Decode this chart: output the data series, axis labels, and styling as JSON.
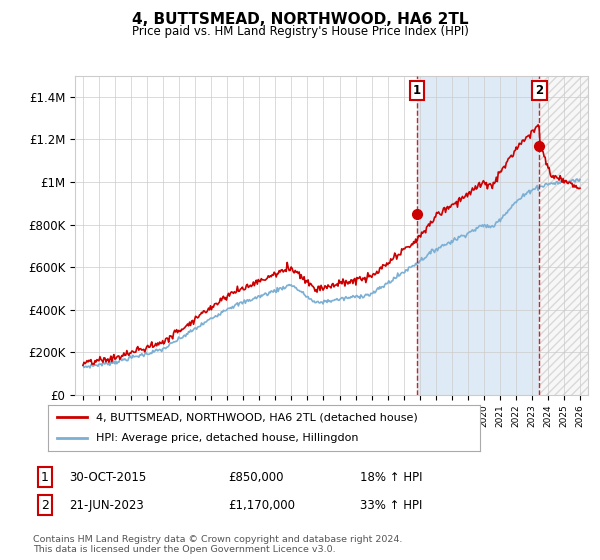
{
  "title": "4, BUTTSMEAD, NORTHWOOD, HA6 2TL",
  "subtitle": "Price paid vs. HM Land Registry's House Price Index (HPI)",
  "ylim": [
    0,
    1500000
  ],
  "yticks": [
    0,
    200000,
    400000,
    600000,
    800000,
    1000000,
    1200000,
    1400000
  ],
  "ytick_labels": [
    "£0",
    "£200K",
    "£400K",
    "£600K",
    "£800K",
    "£1M",
    "£1.2M",
    "£1.4M"
  ],
  "x_start_year": 1995,
  "x_end_year": 2026,
  "line1_color": "#cc0000",
  "line2_color": "#7bafd4",
  "vline_color": "#cc0000",
  "shade_color": "#deeaf5",
  "hatch_color": "#cccccc",
  "transaction1_year": 2015.83,
  "transaction1_value": 850000,
  "transaction2_year": 2023.47,
  "transaction2_value": 1170000,
  "legend_line1": "4, BUTTSMEAD, NORTHWOOD, HA6 2TL (detached house)",
  "legend_line2": "HPI: Average price, detached house, Hillingdon",
  "table_row1_num": "1",
  "table_row1_date": "30-OCT-2015",
  "table_row1_price": "£850,000",
  "table_row1_hpi": "18% ↑ HPI",
  "table_row2_num": "2",
  "table_row2_date": "21-JUN-2023",
  "table_row2_price": "£1,170,000",
  "table_row2_hpi": "33% ↑ HPI",
  "footnote": "Contains HM Land Registry data © Crown copyright and database right 2024.\nThis data is licensed under the Open Government Licence v3.0.",
  "background_color": "#ffffff",
  "grid_color": "#cccccc"
}
